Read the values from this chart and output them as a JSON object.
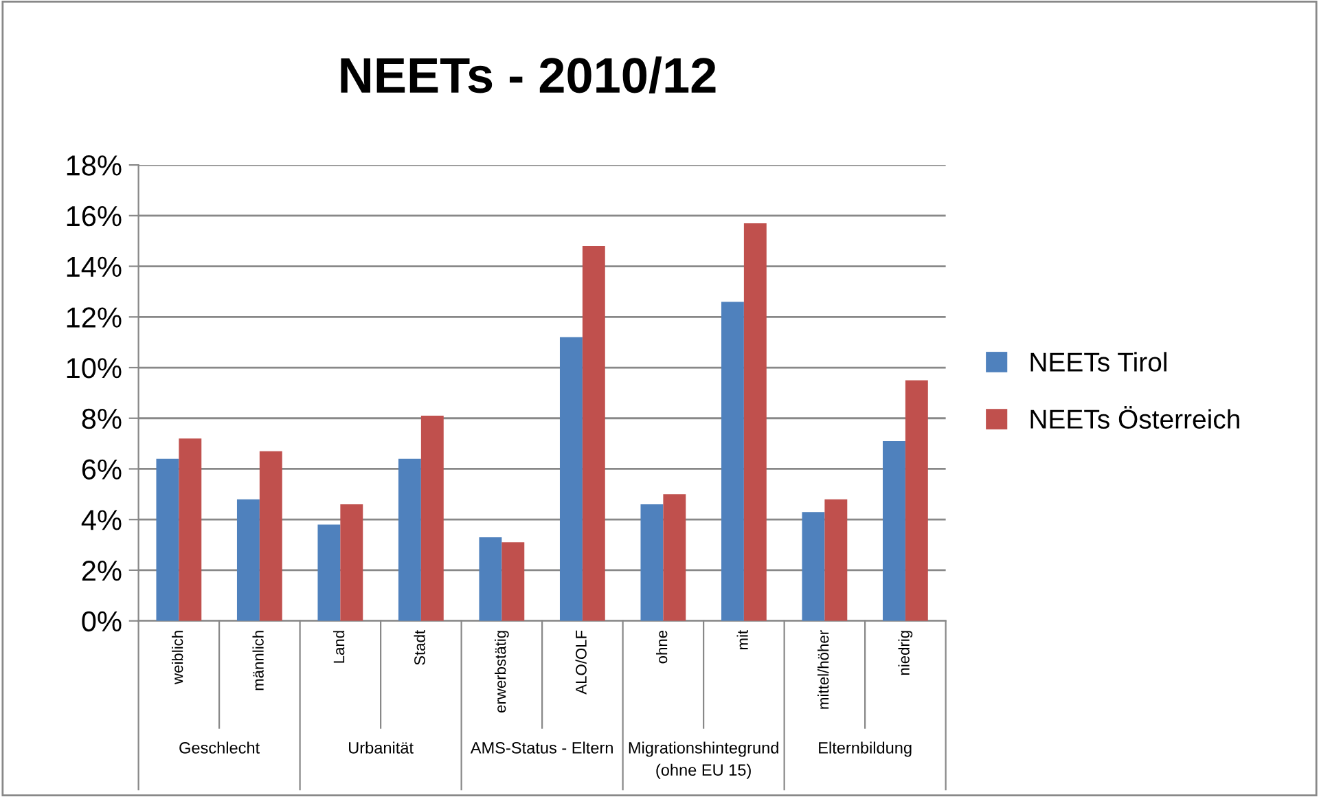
{
  "chart_data": {
    "type": "bar",
    "title": "NEETs - 2010/12",
    "categories": [
      "weiblich",
      "männlich",
      "Land",
      "Stadt",
      "erwerbstätig",
      "ALO/OLF",
      "ohne",
      "mit",
      "mittel/höher",
      "niedrig"
    ],
    "annotations": [
      "Geschlecht",
      "Urbanität",
      "AMS-Status - Eltern",
      "Migrationshintegrund\n(ohne EU 15)",
      "Elternbildung"
    ],
    "series": [
      {
        "name": "NEETs Tirol",
        "color": "#4f81bd",
        "values": [
          6.4,
          4.8,
          3.8,
          6.4,
          3.3,
          11.2,
          4.6,
          12.6,
          4.3,
          7.1
        ]
      },
      {
        "name": "NEETs Österreich",
        "color": "#c0504d",
        "values": [
          7.2,
          6.7,
          4.6,
          8.1,
          3.1,
          14.8,
          5.0,
          15.7,
          4.8,
          9.5
        ]
      }
    ],
    "ylim": [
      0,
      18
    ],
    "yticks": [
      {
        "value": 0,
        "label": "0%"
      },
      {
        "value": 2,
        "label": "2%"
      },
      {
        "value": 4,
        "label": "4%"
      },
      {
        "value": 6,
        "label": "6%"
      },
      {
        "value": 8,
        "label": "8%"
      },
      {
        "value": 10,
        "label": "10%"
      },
      {
        "value": 12,
        "label": "12%"
      },
      {
        "value": 14,
        "label": "14%"
      },
      {
        "value": 16,
        "label": "16%"
      },
      {
        "value": 18,
        "label": "18%"
      }
    ],
    "grid": "y",
    "legend": "right"
  }
}
